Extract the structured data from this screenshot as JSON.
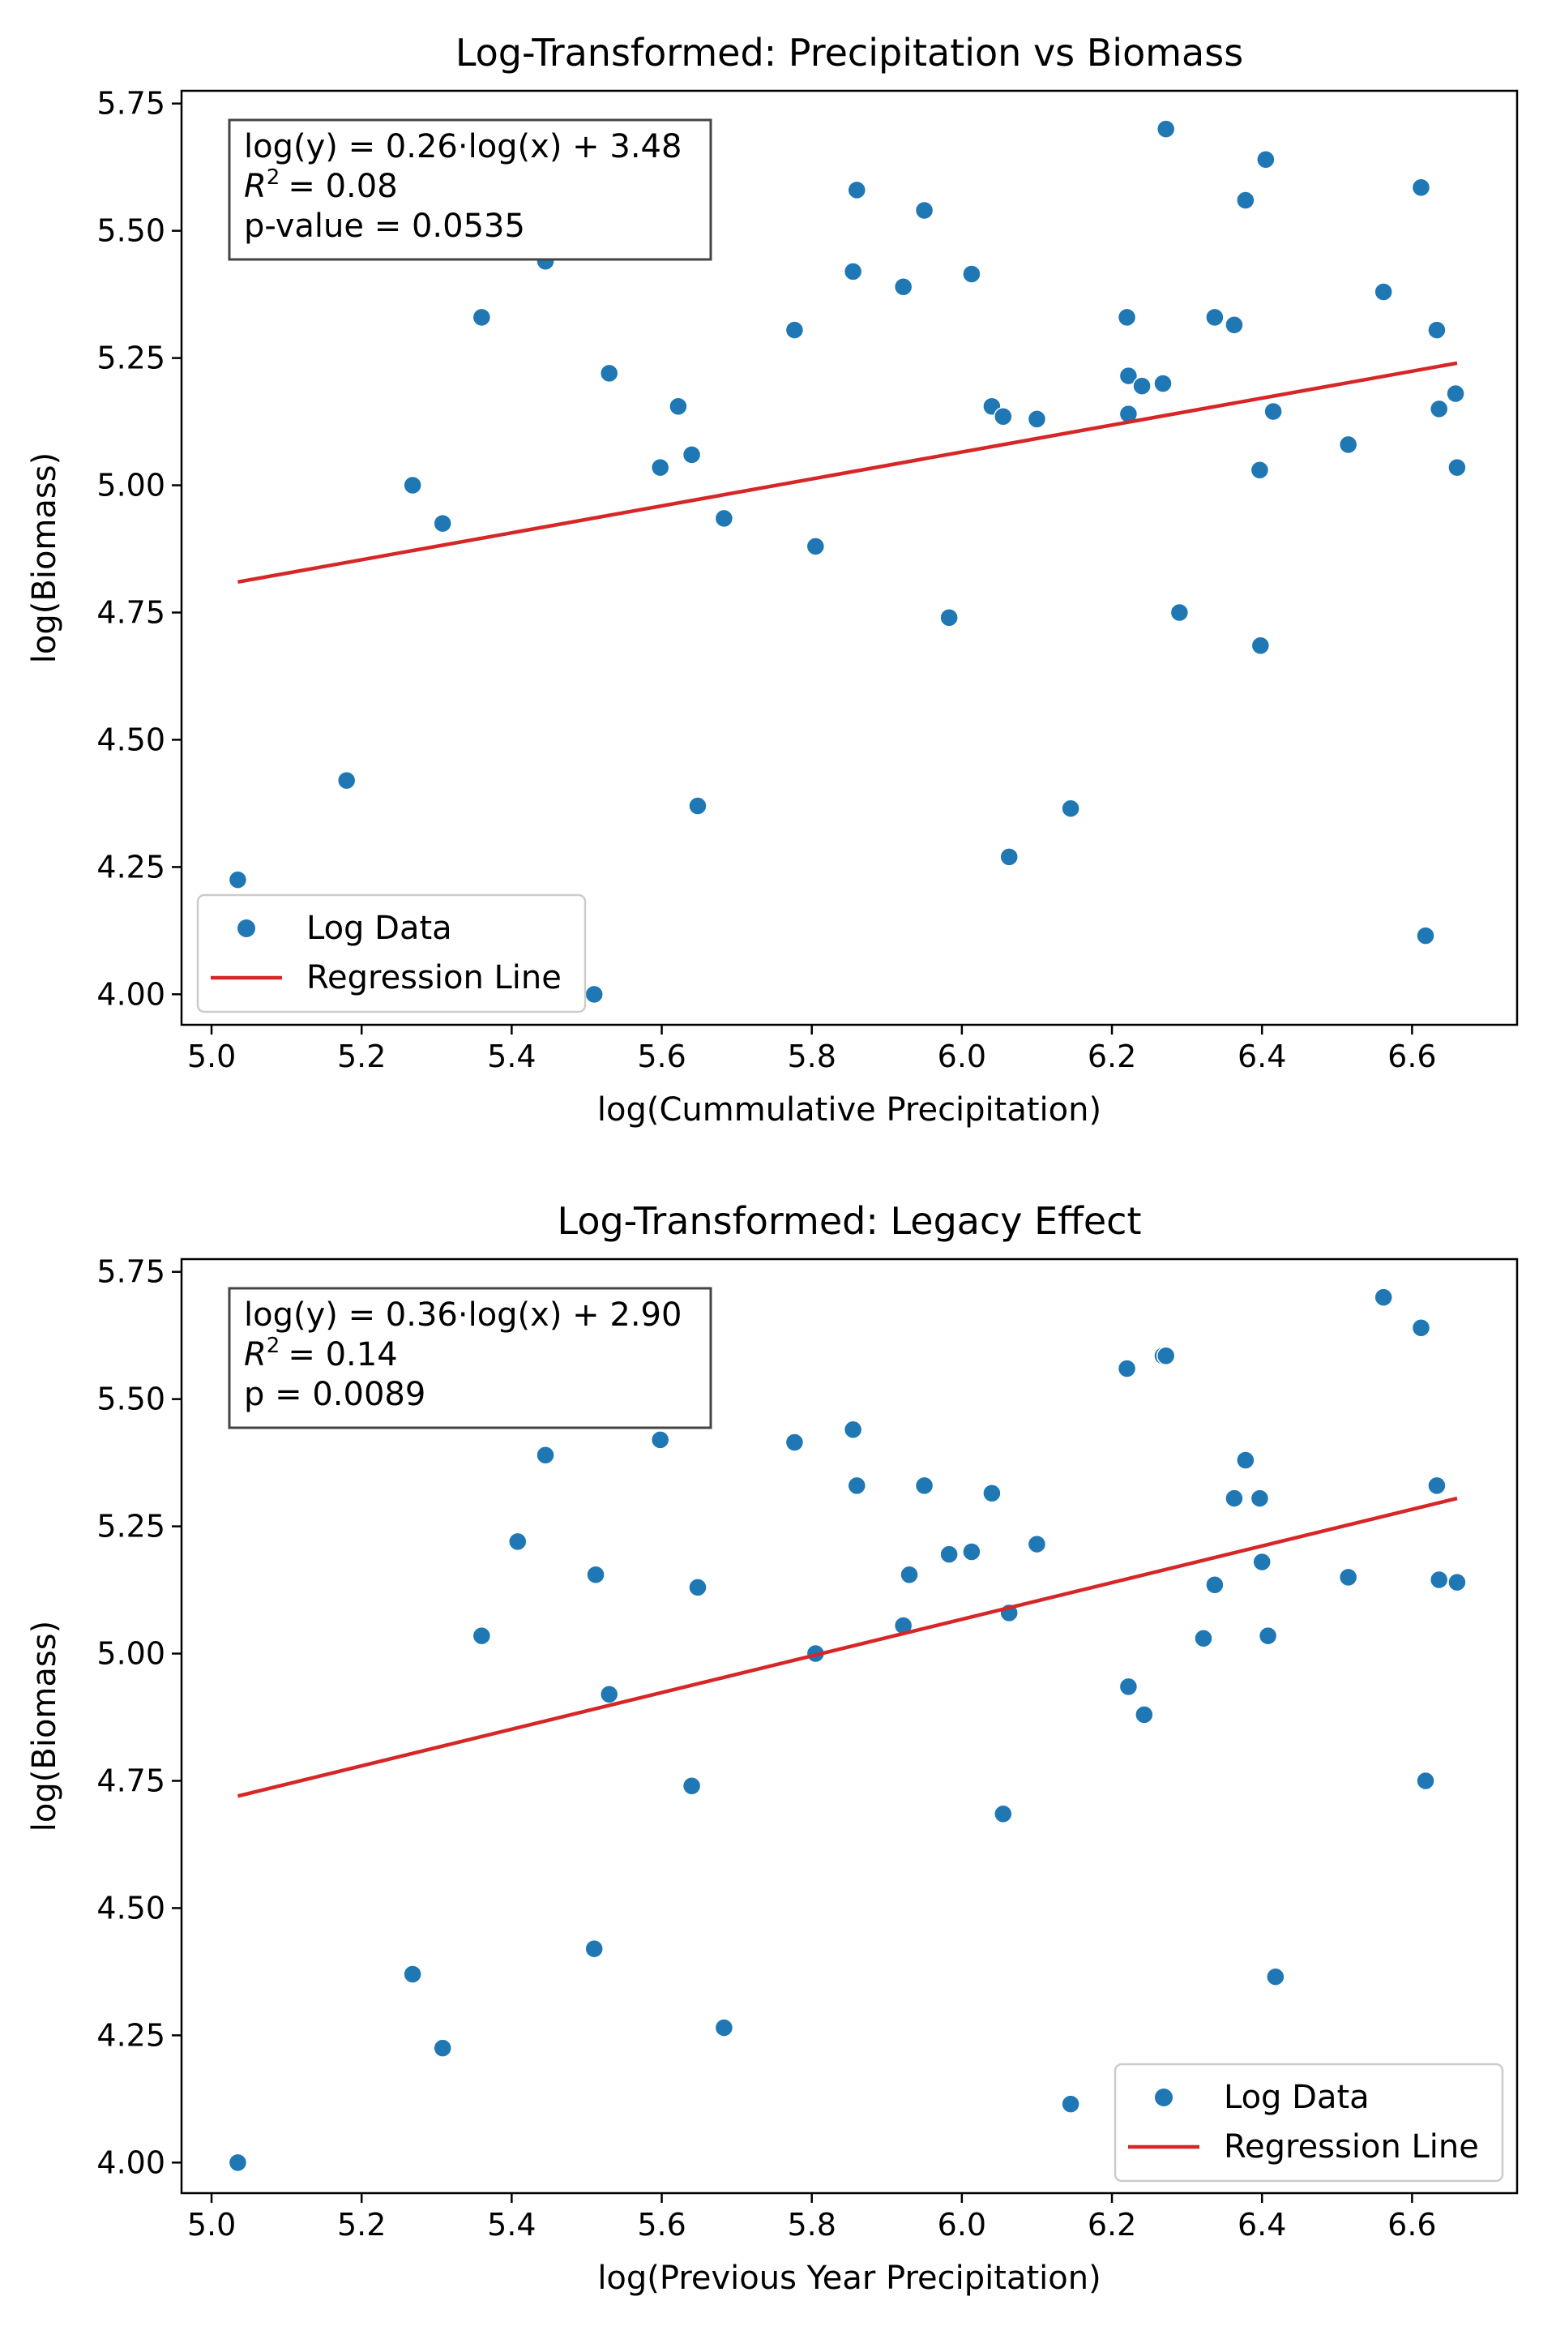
{
  "chart_data": [
    {
      "type": "scatter",
      "title": "Log-Transformed: Precipitation vs Biomass",
      "xlabel": "log(Cummulative Precipitation)",
      "ylabel": "log(Biomass)",
      "xlim": [
        4.96,
        6.74
      ],
      "ylim": [
        3.94,
        5.775
      ],
      "xticks": [
        "5.0",
        "5.2",
        "5.4",
        "5.6",
        "5.8",
        "6.0",
        "6.2",
        "6.4",
        "6.6"
      ],
      "yticks": [
        "4.00",
        "4.25",
        "4.50",
        "4.75",
        "5.00",
        "5.25",
        "5.50",
        "5.75"
      ],
      "stats_box": [
        "log(y) = 0.26·log(x) + 3.48",
        "= 0.08",
        "p-value = 0.0535"
      ],
      "r2_label": "R",
      "r2_sup": "2",
      "legend_position": "lower-left",
      "legend": [
        "Log Data",
        "Regression Line"
      ],
      "colors": {
        "points": "#1f77b4",
        "line": "#d62728"
      },
      "regression": {
        "slope": 0.26,
        "intercept": 3.48,
        "x": [
          5.035,
          6.66
        ],
        "y": [
          4.81,
          5.24
        ]
      },
      "series": [
        {
          "name": "Log Data",
          "x": [
            5.035,
            5.18,
            5.268,
            5.308,
            5.36,
            5.445,
            5.51,
            5.53,
            5.598,
            5.622,
            5.64,
            5.648,
            5.683,
            5.777,
            5.805,
            5.855,
            5.86,
            5.922,
            5.95,
            5.983,
            6.013,
            6.04,
            6.055,
            6.063,
            6.1,
            6.145,
            6.22,
            6.222,
            6.222,
            6.24,
            6.268,
            6.272,
            6.29,
            6.337,
            6.363,
            6.378,
            6.397,
            6.398,
            6.405,
            6.415,
            6.515,
            6.562,
            6.612,
            6.618,
            6.633,
            6.636,
            6.658,
            6.66
          ],
          "y": [
            4.225,
            4.42,
            5.0,
            4.925,
            5.33,
            5.44,
            4.0,
            5.22,
            5.035,
            5.155,
            5.06,
            4.37,
            4.935,
            5.305,
            4.88,
            5.42,
            5.58,
            5.39,
            5.54,
            4.74,
            5.415,
            5.155,
            5.135,
            4.27,
            5.13,
            4.365,
            5.33,
            5.215,
            5.14,
            5.195,
            5.2,
            5.7,
            4.75,
            5.33,
            5.315,
            5.56,
            5.03,
            4.685,
            5.64,
            5.145,
            5.08,
            5.38,
            5.585,
            4.115,
            5.305,
            5.15,
            5.18,
            5.035
          ]
        }
      ]
    },
    {
      "type": "scatter",
      "title": "Log-Transformed: Legacy Effect",
      "xlabel": "log(Previous Year Precipitation)",
      "ylabel": "log(Biomass)",
      "xlim": [
        4.96,
        6.74
      ],
      "ylim": [
        3.94,
        5.775
      ],
      "xticks": [
        "5.0",
        "5.2",
        "5.4",
        "5.6",
        "5.8",
        "6.0",
        "6.2",
        "6.4",
        "6.6"
      ],
      "yticks": [
        "4.00",
        "4.25",
        "4.50",
        "4.75",
        "5.00",
        "5.25",
        "5.50",
        "5.75"
      ],
      "stats_box": [
        "log(y) = 0.36·log(x) + 2.90",
        "= 0.14",
        "p = 0.0089"
      ],
      "r2_label": "R",
      "r2_sup": "2",
      "legend_position": "lower-right",
      "legend": [
        "Log Data",
        "Regression Line"
      ],
      "colors": {
        "points": "#1f77b4",
        "line": "#d62728"
      },
      "regression": {
        "slope": 0.36,
        "intercept": 2.9,
        "x": [
          5.035,
          6.66
        ],
        "y": [
          4.72,
          5.305
        ]
      },
      "series": [
        {
          "name": "Log Data",
          "x": [
            5.035,
            5.268,
            5.308,
            5.36,
            5.408,
            5.445,
            5.51,
            5.512,
            5.53,
            5.598,
            5.622,
            5.64,
            5.648,
            5.683,
            5.777,
            5.805,
            5.855,
            5.86,
            5.922,
            5.93,
            5.95,
            5.983,
            6.013,
            6.04,
            6.055,
            6.063,
            6.1,
            6.145,
            6.22,
            6.222,
            6.243,
            6.268,
            6.272,
            6.322,
            6.337,
            6.363,
            6.378,
            6.397,
            6.4,
            6.408,
            6.418,
            6.515,
            6.562,
            6.612,
            6.618,
            6.633,
            6.636,
            6.66
          ],
          "y": [
            4.0,
            4.37,
            4.225,
            5.035,
            5.22,
            5.39,
            4.42,
            5.155,
            4.92,
            5.42,
            5.54,
            4.74,
            5.13,
            4.265,
            5.415,
            5.0,
            5.44,
            5.33,
            5.055,
            5.155,
            5.33,
            5.195,
            5.2,
            5.315,
            4.685,
            5.08,
            5.215,
            4.115,
            5.56,
            4.935,
            4.88,
            5.585,
            5.585,
            5.03,
            5.135,
            5.305,
            5.38,
            5.305,
            5.18,
            5.035,
            4.365,
            5.15,
            5.7,
            5.64,
            4.75,
            5.33,
            5.145,
            5.14
          ]
        }
      ]
    }
  ]
}
